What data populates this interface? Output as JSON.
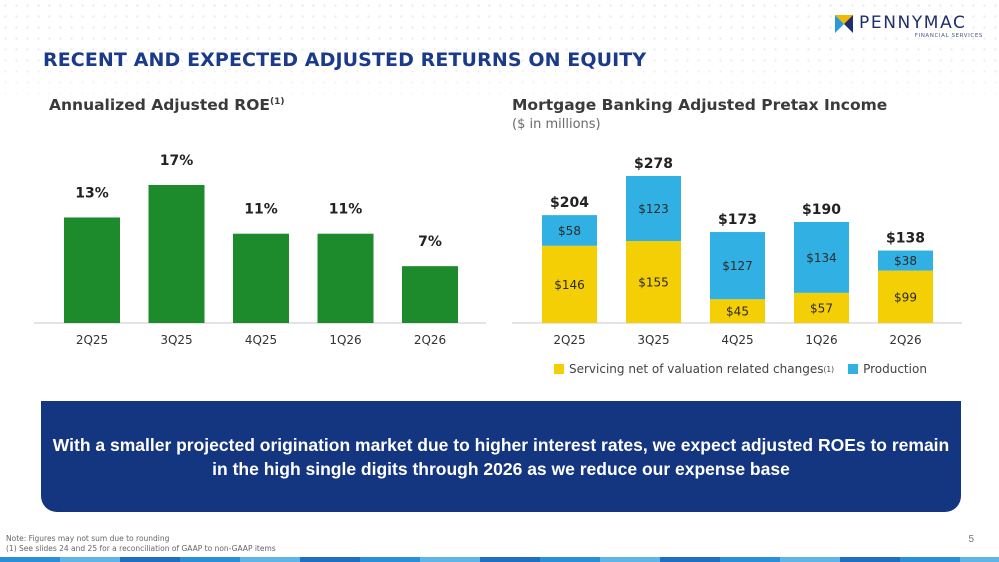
{
  "slide": {
    "title": "RECENT AND EXPECTED ADJUSTED RETURNS ON EQUITY",
    "logo_name": "PENNYMAC",
    "logo_sub": "FINANCIAL SERVICES",
    "page_number": "5",
    "banner": "With a smaller projected origination market due to higher interest rates, we expect adjusted ROEs to remain in the high single digits through 2026 as we reduce our expense base",
    "notes": [
      "Note: Figures may not sum due to rounding",
      "(1) See slides 24 and 25 for a reconciliation of GAAP to non-GAAP items"
    ],
    "colors": {
      "title": "#1b3a8a",
      "banner": "#14357f",
      "roe_bar": "#1d8a2c",
      "servicing": "#f5cf05",
      "production": "#30b0e3"
    }
  },
  "chart_data": [
    {
      "type": "bar",
      "title": "Annualized Adjusted ROE",
      "title_sup": "(1)",
      "categories": [
        "2Q25",
        "3Q25",
        "4Q25",
        "1Q26",
        "2Q26"
      ],
      "values": [
        13,
        17,
        11,
        11,
        7
      ],
      "labels": [
        "13%",
        "17%",
        "11%",
        "11%",
        "7%"
      ],
      "unit": "%",
      "ylim": [
        0,
        17
      ],
      "grid": false,
      "legend": "none"
    },
    {
      "type": "bar",
      "stacked": true,
      "title": "Mortgage Banking Adjusted Pretax Income",
      "subtitle": "($ in millions)",
      "categories": [
        "2Q25",
        "3Q25",
        "4Q25",
        "1Q26",
        "2Q26"
      ],
      "series": [
        {
          "name": "Servicing net of valuation related changes",
          "name_sup": "(1)",
          "values": [
            146,
            155,
            45,
            57,
            99
          ],
          "labels": [
            "$146",
            "$155",
            "$45",
            "$57",
            "$99"
          ],
          "color": "#f5cf05"
        },
        {
          "name": "Production",
          "name_sup": "",
          "values": [
            58,
            123,
            127,
            134,
            38
          ],
          "labels": [
            "$58",
            "$123",
            "$127",
            "$134",
            "$38"
          ],
          "color": "#30b0e3"
        }
      ],
      "totals": [
        204,
        278,
        173,
        190,
        138
      ],
      "total_labels": [
        "$204",
        "$278",
        "$173",
        "$190",
        "$138"
      ],
      "ylim": [
        0,
        278
      ],
      "grid": false,
      "legend": "bottom"
    }
  ]
}
